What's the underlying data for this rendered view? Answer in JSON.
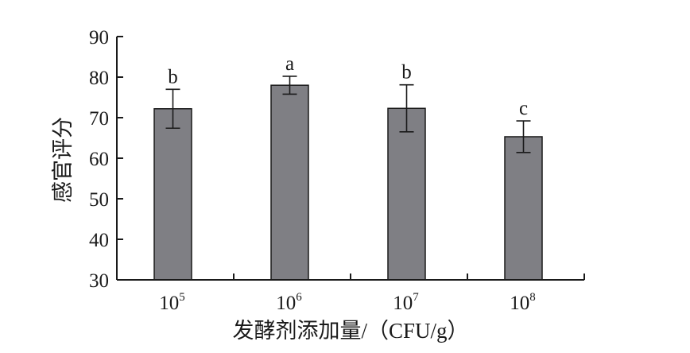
{
  "chart_data": {
    "type": "bar",
    "title": "",
    "xlabel": "发酵剂添加量/（CFU/g）",
    "ylabel": "感官评分",
    "ylim": [
      30,
      90
    ],
    "yticks": [
      30,
      40,
      50,
      60,
      70,
      80,
      90
    ],
    "categories": [
      {
        "base": "10",
        "exp": "5"
      },
      {
        "base": "10",
        "exp": "6"
      },
      {
        "base": "10",
        "exp": "7"
      },
      {
        "base": "10",
        "exp": "8"
      }
    ],
    "values": [
      72.2,
      78.0,
      72.3,
      65.3
    ],
    "errors": [
      4.8,
      2.2,
      5.8,
      3.9
    ],
    "significance": [
      "b",
      "a",
      "b",
      "c"
    ],
    "grid": false,
    "legend": "none",
    "bar_color": "#7f7f84"
  }
}
